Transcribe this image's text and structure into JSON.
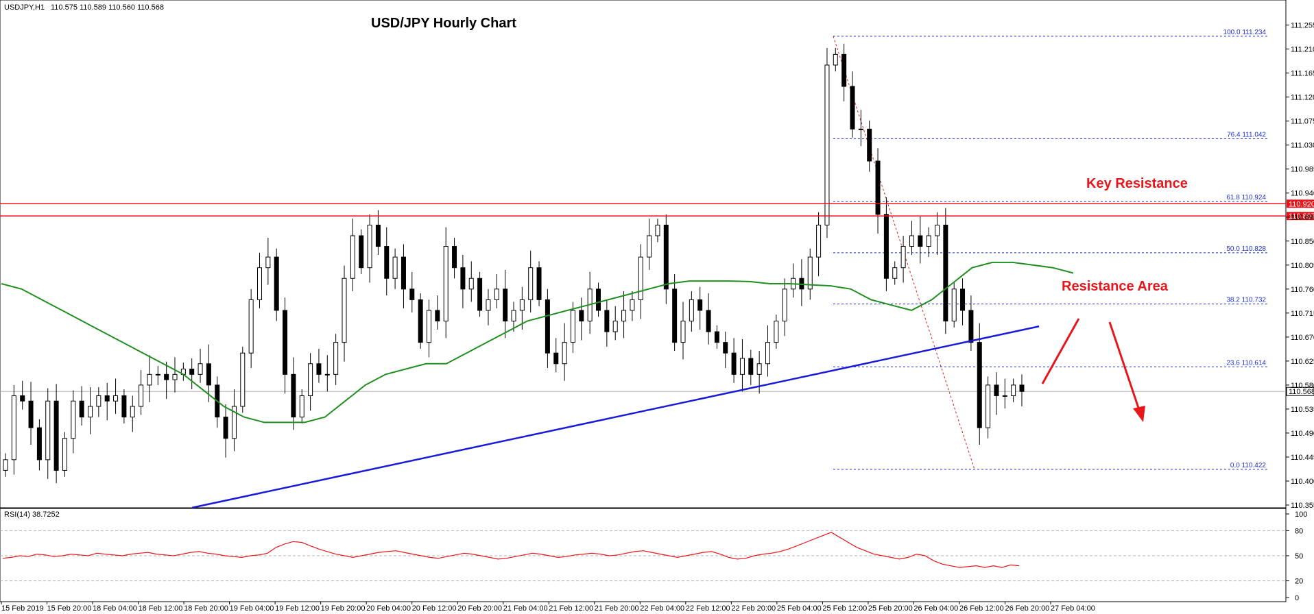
{
  "chart_data": [
    {
      "type": "candlestick",
      "symbol_header": "USDJPY,H1",
      "ohlc_header": "110.575 110.589 110.560 110.568",
      "title": "USD/JPY Hourly Chart",
      "ylim": [
        110.355,
        111.275
      ],
      "y_ticks": [
        "111.255",
        "111.210",
        "111.165",
        "111.120",
        "111.075",
        "111.030",
        "110.985",
        "110.940",
        "110.895",
        "110.850",
        "110.805",
        "110.760",
        "110.715",
        "110.670",
        "110.625",
        "110.580",
        "110.535",
        "110.490",
        "110.445",
        "110.400",
        "110.355"
      ],
      "x_ticks": [
        "15 Feb 2019",
        "15 Feb 20:00",
        "18 Feb 04:00",
        "18 Feb 12:00",
        "18 Feb 20:00",
        "19 Feb 04:00",
        "19 Feb 12:00",
        "19 Feb 20:00",
        "20 Feb 04:00",
        "20 Feb 12:00",
        "20 Feb 20:00",
        "21 Feb 04:00",
        "21 Feb 12:00",
        "21 Feb 20:00",
        "22 Feb 04:00",
        "22 Feb 12:00",
        "22 Feb 20:00",
        "25 Feb 04:00",
        "25 Feb 12:00",
        "25 Feb 20:00",
        "26 Feb 04:00",
        "26 Feb 12:00",
        "26 Feb 20:00",
        "27 Feb 04:00"
      ],
      "candles_close": [
        110.44,
        110.56,
        110.55,
        110.5,
        110.44,
        110.55,
        110.42,
        110.48,
        110.55,
        110.52,
        110.54,
        110.56,
        110.55,
        110.56,
        110.52,
        110.54,
        110.58,
        110.6,
        110.6,
        110.59,
        110.6,
        110.61,
        110.6,
        110.62,
        110.58,
        110.52,
        110.48,
        110.54,
        110.64,
        110.74,
        110.8,
        110.82,
        110.72,
        110.6,
        110.52,
        110.56,
        110.62,
        110.6,
        110.6,
        110.66,
        110.78,
        110.86,
        110.8,
        110.88,
        110.84,
        110.78,
        110.82,
        110.76,
        110.74,
        110.66,
        110.72,
        110.7,
        110.84,
        110.8,
        110.76,
        110.78,
        110.72,
        110.74,
        110.76,
        110.7,
        110.72,
        110.74,
        110.8,
        110.74,
        110.64,
        110.62,
        110.66,
        110.72,
        110.7,
        110.76,
        110.72,
        110.68,
        110.7,
        110.72,
        110.74,
        110.82,
        110.86,
        110.88,
        110.76,
        110.66,
        110.7,
        110.74,
        110.72,
        110.68,
        110.66,
        110.64,
        110.6,
        110.63,
        110.6,
        110.62,
        110.66,
        110.7,
        110.76,
        110.78,
        110.76,
        110.82,
        110.88,
        111.18,
        111.2,
        111.14,
        111.06,
        111.06,
        111.0,
        110.9,
        110.78,
        110.8,
        110.84,
        110.86,
        110.84,
        110.86,
        110.88,
        110.7,
        110.76,
        110.72,
        110.66,
        110.5,
        110.58,
        110.56,
        110.56,
        110.58,
        110.568
      ],
      "ma": {
        "name": "",
        "values": [
          110.77,
          110.76,
          110.74,
          110.72,
          110.7,
          110.68,
          110.66,
          110.64,
          110.62,
          110.6,
          110.57,
          110.54,
          110.52,
          110.51,
          110.51,
          110.51,
          110.52,
          110.55,
          110.58,
          110.6,
          110.61,
          110.62,
          110.62,
          110.64,
          110.66,
          110.68,
          110.7,
          110.71,
          110.72,
          110.73,
          110.74,
          110.75,
          110.76,
          110.77,
          110.775,
          110.775,
          110.775,
          110.774,
          110.77,
          110.77,
          110.768,
          110.766,
          110.76,
          110.74,
          110.73,
          110.72,
          110.74,
          110.77,
          110.8,
          110.81,
          110.81,
          110.805,
          110.8,
          110.79
        ]
      },
      "horizontal_levels": [
        {
          "value": 110.92,
          "label": "110.920"
        },
        {
          "value": 110.897,
          "label": "110.897"
        }
      ],
      "current_price": {
        "value": 110.568,
        "label": "110.568"
      },
      "fibonacci": [
        {
          "pct": "100.0",
          "value": 111.234,
          "label": "100.0 111.234"
        },
        {
          "pct": "76.4",
          "value": 111.042,
          "label": "76.4 111.042"
        },
        {
          "pct": "61.8",
          "value": 110.924,
          "label": "61.8 110.924"
        },
        {
          "pct": "50.0",
          "value": 110.828,
          "label": "50.0 110.828"
        },
        {
          "pct": "38.2",
          "value": 110.732,
          "label": "38.2 110.732"
        },
        {
          "pct": "23.6",
          "value": 110.614,
          "label": "23.6 110.614"
        },
        {
          "pct": "0.0",
          "value": 110.422,
          "label": "0.0 110.422"
        }
      ],
      "annotations": [
        "Key Resistance",
        "Resistance Area"
      ],
      "trendline": {
        "from_value": 110.35,
        "to_value": 110.69
      }
    },
    {
      "type": "line",
      "title": "RSI(14) 38.7252",
      "ylim": [
        0,
        100
      ],
      "y_ticks": [
        "100",
        "80",
        "50",
        "20",
        "0"
      ],
      "values": [
        47,
        48,
        50,
        49,
        52,
        51,
        49,
        50,
        52,
        51,
        50,
        53,
        52,
        51,
        50,
        52,
        53,
        54,
        52,
        51,
        50,
        52,
        54,
        55,
        53,
        52,
        50,
        49,
        48,
        50,
        51,
        53,
        60,
        64,
        67,
        66,
        62,
        58,
        55,
        52,
        50,
        48,
        50,
        52,
        54,
        55,
        56,
        54,
        52,
        50,
        48,
        47,
        49,
        51,
        53,
        52,
        50,
        48,
        46,
        47,
        49,
        51,
        53,
        52,
        50,
        48,
        49,
        51,
        52,
        53,
        52,
        50,
        51,
        53,
        55,
        56,
        54,
        52,
        50,
        48,
        50,
        52,
        54,
        55,
        52,
        48,
        46,
        47,
        50,
        52,
        53,
        55,
        58,
        62,
        66,
        70,
        74,
        78,
        72,
        66,
        60,
        56,
        52,
        50,
        48,
        46,
        48,
        52,
        50,
        44,
        40,
        38,
        36,
        37,
        38,
        36,
        38,
        36,
        39,
        38
      ]
    }
  ]
}
